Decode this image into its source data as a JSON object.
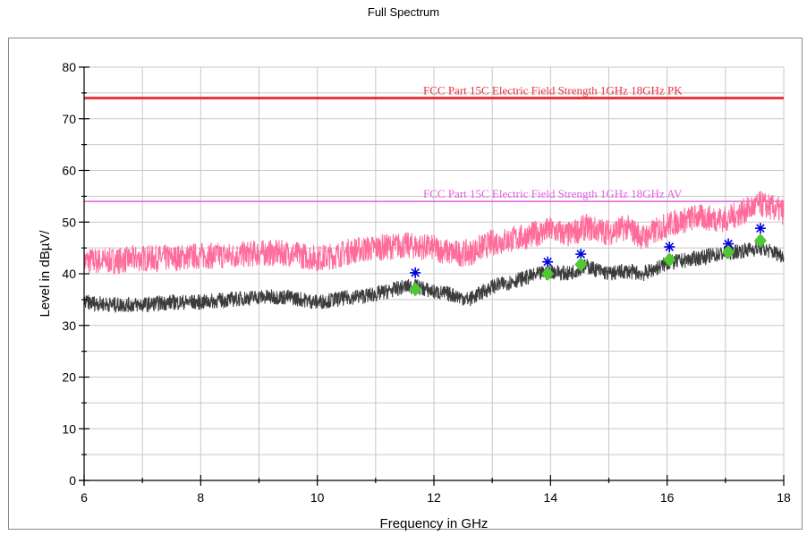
{
  "chart_data": {
    "type": "line",
    "title": "Full Spectrum",
    "xlabel": "Frequency in GHz",
    "ylabel": "Level in dBµV/",
    "xlim": [
      6,
      18
    ],
    "ylim": [
      0,
      80
    ],
    "x_ticks": [
      6,
      8,
      10,
      12,
      14,
      16,
      18
    ],
    "y_ticks": [
      0,
      10,
      20,
      30,
      40,
      50,
      60,
      70,
      80
    ],
    "grid": true,
    "limits": [
      {
        "label": "FCC Part 15C Electric Field Strength 1GHz 18GHz PK",
        "value": 74,
        "color": "#e8323c"
      },
      {
        "label": "FCC Part 15C Electric Field Strength 1GHz 18GHz AV",
        "value": 54,
        "color": "#e060e0"
      }
    ],
    "series": [
      {
        "color": "#ff6b9a",
        "x": [
          6.0,
          6.5,
          7.0,
          7.5,
          8.0,
          8.5,
          9.0,
          9.5,
          10.0,
          10.3,
          10.6,
          11.0,
          11.5,
          12.0,
          12.3,
          12.6,
          13.0,
          13.5,
          14.0,
          14.3,
          14.6,
          15.0,
          15.3,
          15.6,
          16.0,
          16.5,
          17.0,
          17.3,
          17.6,
          18.0
        ],
        "values": [
          42.5,
          42.5,
          43.0,
          43.0,
          43.5,
          43.5,
          44.0,
          44.0,
          43.0,
          43.5,
          44.5,
          45.0,
          45.5,
          45.0,
          44.0,
          44.0,
          46.0,
          47.0,
          48.5,
          47.5,
          49.0,
          48.0,
          49.0,
          47.0,
          49.5,
          51.0,
          50.5,
          52.0,
          53.5,
          52.0
        ]
      },
      {
        "color": "#3c3c3c",
        "x": [
          6.0,
          6.5,
          7.0,
          7.5,
          8.0,
          8.5,
          9.0,
          9.5,
          10.0,
          10.3,
          10.6,
          11.0,
          11.5,
          11.7,
          12.0,
          12.3,
          12.6,
          13.0,
          13.5,
          14.0,
          14.3,
          14.6,
          15.0,
          15.3,
          15.6,
          16.0,
          16.5,
          17.0,
          17.3,
          17.6,
          18.0
        ],
        "values": [
          34.5,
          34.0,
          34.0,
          34.5,
          34.5,
          35.0,
          35.5,
          35.5,
          34.5,
          35.0,
          35.5,
          36.0,
          37.5,
          37.5,
          36.5,
          36.0,
          35.0,
          37.5,
          39.0,
          40.5,
          40.0,
          41.5,
          40.0,
          40.5,
          40.0,
          42.0,
          43.0,
          44.0,
          44.5,
          45.0,
          43.5
        ]
      }
    ],
    "markers": {
      "peak": {
        "color": "#0000dd",
        "x": [
          11.68,
          13.95,
          14.52,
          16.04,
          17.05,
          17.6
        ],
        "values": [
          40.2,
          42.3,
          43.8,
          45.2,
          45.8,
          48.8
        ]
      },
      "average": {
        "color": "#50c832",
        "x": [
          11.68,
          13.95,
          14.52,
          16.04,
          17.05,
          17.6
        ],
        "values": [
          37.0,
          40.0,
          41.8,
          42.7,
          44.2,
          46.4
        ]
      }
    }
  }
}
